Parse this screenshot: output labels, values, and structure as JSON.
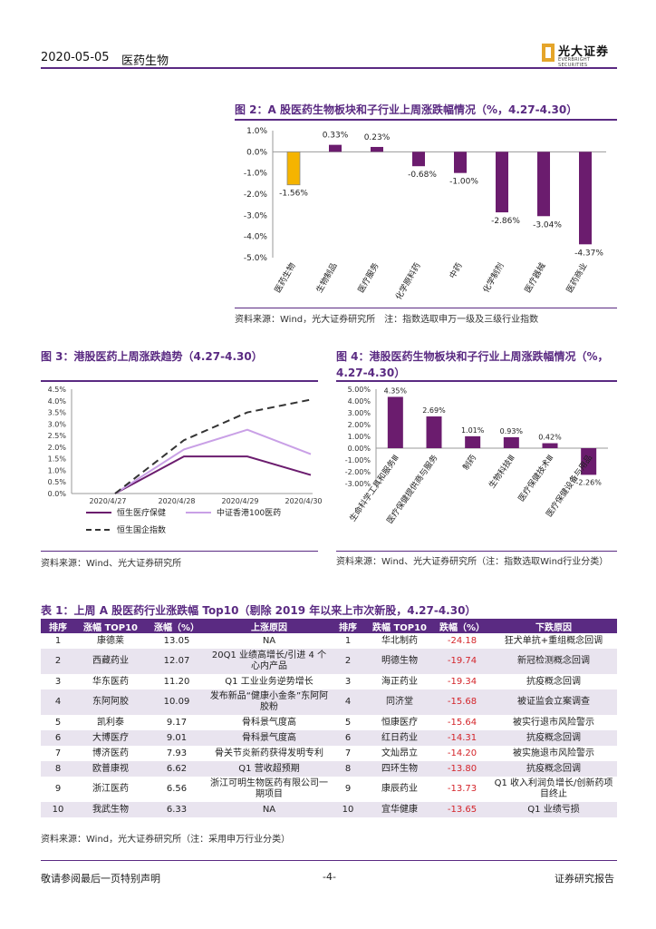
{
  "header": {
    "date": "2020-05-05",
    "section": "医药生物",
    "logo_cn": "光大证券",
    "logo_en": "EVERBRIGHT SECURITIES"
  },
  "fig2": {
    "title": "图 2：A 股医药生物板块和子行业上周涨跌幅情况（%，4.27-4.30）",
    "source": "资料来源：Wind，光大证券研究所　注：指数选取申万一级及三级行业指数",
    "chart_data": {
      "type": "bar",
      "categories": [
        "医药生物",
        "生物制品",
        "医疗服务",
        "化学原料药",
        "中药",
        "化学制剂",
        "医疗器械",
        "医药商业"
      ],
      "values": [
        -1.56,
        0.33,
        0.23,
        -0.68,
        -1.0,
        -2.86,
        -3.04,
        -4.37
      ],
      "data_labels": [
        "-1.56%",
        "0.33%",
        "0.23%",
        "-0.68%",
        "-1.00%",
        "-2.86%",
        "-3.04%",
        "-4.37%"
      ],
      "yticks": [
        "1.0%",
        "0.0%",
        "-1.0%",
        "-2.0%",
        "-3.0%",
        "-4.0%",
        "-5.0%"
      ],
      "ylim": [
        -5,
        1
      ],
      "colors": {
        "highlight": "#f5b400",
        "default": "#6b1c6e"
      }
    }
  },
  "fig3": {
    "title": "图 3：港股医药上周涨跌趋势（4.27-4.30）",
    "source": "资料来源：Wind、光大证券研究所",
    "chart_data": {
      "type": "line",
      "x": [
        "2020/4/27",
        "2020/4/28",
        "2020/4/29",
        "2020/4/30"
      ],
      "yticks": [
        "4.5%",
        "4.0%",
        "3.5%",
        "3.0%",
        "2.5%",
        "2.0%",
        "1.5%",
        "1.0%",
        "0.5%",
        "0.0%"
      ],
      "ylim": [
        0,
        4.5
      ],
      "series": [
        {
          "name": "恒生医疗保健",
          "values": [
            0.0,
            1.6,
            1.6,
            0.8
          ],
          "color": "#6b1c6e",
          "dash": false
        },
        {
          "name": "中证香港100医药",
          "values": [
            0.0,
            1.9,
            2.75,
            1.7
          ],
          "color": "#c9a0e6",
          "dash": false
        },
        {
          "name": "恒生国企指数",
          "values": [
            0.0,
            2.3,
            3.5,
            4.05
          ],
          "color": "#333333",
          "dash": true
        }
      ]
    }
  },
  "fig4": {
    "title": "图 4：港股医药生物板块和子行业上周涨跌幅情况（%，4.27-4.30）",
    "source": "资料来源：Wind、光大证券研究所（注：指数选取Wind行业分类）",
    "chart_data": {
      "type": "bar",
      "categories": [
        "生命科学工具和服务Ⅲ",
        "医疗保健提供商与服务",
        "制药",
        "生物科技Ⅲ",
        "医疗保健技术Ⅲ",
        "医疗保健设备与用品"
      ],
      "values": [
        4.35,
        2.69,
        1.01,
        0.93,
        0.42,
        -2.26
      ],
      "data_labels": [
        "4.35%",
        "2.69%",
        "1.01%",
        "0.93%",
        "0.42%",
        "-2.26%"
      ],
      "yticks": [
        "5.00%",
        "4.00%",
        "3.00%",
        "2.00%",
        "1.00%",
        "0.00%",
        "-1.00%",
        "-2.00%",
        "-3.00%"
      ],
      "ylim": [
        -3,
        5
      ],
      "color": "#6b1c6e"
    }
  },
  "table1": {
    "title": "表 1：上周 A 股医药行业涨跌幅 Top10（剔除 2019 年以来上市次新股，4.27-4.30）",
    "headers": [
      "排序",
      "涨幅 TOP10",
      "涨幅（%）",
      "上涨原因",
      "排序",
      "跌幅 TOP10",
      "跌幅（%）",
      "下跌原因"
    ],
    "rows": [
      [
        "1",
        "康德莱",
        "13.05",
        "NA",
        "1",
        "华北制药",
        "-24.18",
        "狂犬单抗+重组概念回调"
      ],
      [
        "2",
        "西藏药业",
        "12.07",
        "20Q1 业绩高增长/引进 4 个心内产品",
        "2",
        "明德生物",
        "-19.74",
        "新冠检测概念回调"
      ],
      [
        "3",
        "华东医药",
        "11.20",
        "Q1 工业业务逆势增长",
        "3",
        "海正药业",
        "-19.34",
        "抗疫概念回调"
      ],
      [
        "4",
        "东阿阿胶",
        "10.09",
        "发布新品“健康小金条”东阿阿胶粉",
        "4",
        "同济堂",
        "-15.68",
        "被证监会立案调查"
      ],
      [
        "5",
        "凯利泰",
        "9.17",
        "骨科景气度高",
        "5",
        "恒康医疗",
        "-15.64",
        "被实行退市风险警示"
      ],
      [
        "6",
        "大博医疗",
        "9.01",
        "骨科景气度高",
        "6",
        "红日药业",
        "-14.31",
        "抗疫概念回调"
      ],
      [
        "7",
        "博济医药",
        "7.93",
        "骨关节炎新药获得发明专利",
        "7",
        "文灿昂立",
        "-14.20",
        "被实施退市风险警示"
      ],
      [
        "8",
        "欧普康视",
        "6.62",
        "Q1 营收超预期",
        "8",
        "四环生物",
        "-13.80",
        "抗疫概念回调"
      ],
      [
        "9",
        "浙江医药",
        "6.56",
        "浙江可明生物医药有限公司一期项目",
        "9",
        "康辰药业",
        "-13.73",
        "Q1 收入利润负增长/创新药项目终止"
      ],
      [
        "10",
        "我武生物",
        "6.33",
        "NA",
        "10",
        "宜华健康",
        "-13.65",
        "Q1 业绩亏损"
      ]
    ],
    "source": "资料来源：Wind，光大证券研究所（注：采用申万行业分类）"
  },
  "footer": {
    "left": "敬请参阅最后一页特别声明",
    "page": "-4-",
    "right": "证券研究报告"
  }
}
